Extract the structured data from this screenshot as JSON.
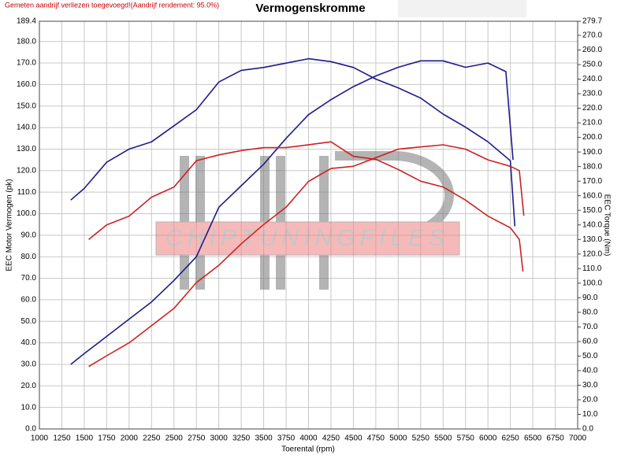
{
  "chart_data": {
    "type": "line",
    "title": "Vermogenskromme",
    "subtitle": "Gemeten aandrijf verliezen toegevoegd!(Aandrijf rendement: 95.0%)",
    "xlabel": "Toerental (rpm)",
    "ylabel": "EEC Motor Vermogen (pk)",
    "y2label": "EEC Torque (Nm)",
    "watermark": "CHIPTUNINGFILES",
    "grid": true,
    "xlim": [
      1000,
      7000
    ],
    "xticks": [
      1000,
      1250,
      1500,
      1750,
      2000,
      2250,
      2500,
      2750,
      3000,
      3250,
      3500,
      3750,
      4000,
      4250,
      4500,
      4750,
      5000,
      5250,
      5500,
      5750,
      6000,
      6250,
      6500,
      6750,
      7000
    ],
    "ylim": [
      0,
      189.4
    ],
    "yticks": [
      {
        "value": 0,
        "label": "0.0"
      },
      {
        "value": 10,
        "label": "10.0"
      },
      {
        "value": 20,
        "label": "20.0"
      },
      {
        "value": 30,
        "label": "30.0"
      },
      {
        "value": 40,
        "label": "40.0"
      },
      {
        "value": 50,
        "label": "50.0"
      },
      {
        "value": 60,
        "label": "60.0"
      },
      {
        "value": 70,
        "label": "70.0"
      },
      {
        "value": 80,
        "label": "80.0"
      },
      {
        "value": 90,
        "label": "90.0"
      },
      {
        "value": 100,
        "label": "100.0"
      },
      {
        "value": 110,
        "label": "110.0"
      },
      {
        "value": 120,
        "label": "120.0"
      },
      {
        "value": 130,
        "label": "130.0"
      },
      {
        "value": 140,
        "label": "140.0"
      },
      {
        "value": 150,
        "label": "150.0"
      },
      {
        "value": 160,
        "label": "160.0"
      },
      {
        "value": 170,
        "label": "170.0"
      },
      {
        "value": 180,
        "label": "180.0"
      },
      189.4
    ],
    "y2lim": [
      0,
      279.7
    ],
    "y2ticks": [
      {
        "value": 0,
        "label": "0.0"
      },
      {
        "value": 10,
        "label": "10.0"
      },
      {
        "value": 20,
        "label": "20.0"
      },
      {
        "value": 30,
        "label": "30.0"
      },
      {
        "value": 40,
        "label": "40.0"
      },
      {
        "value": 50,
        "label": "50.0"
      },
      {
        "value": 60,
        "label": "60.0"
      },
      {
        "value": 70,
        "label": "70.0"
      },
      {
        "value": 80,
        "label": "80.0"
      },
      {
        "value": 90,
        "label": "90.0"
      },
      {
        "value": 100,
        "label": "100.0"
      },
      {
        "value": 110,
        "label": "110.0"
      },
      {
        "value": 120,
        "label": "120.0"
      },
      {
        "value": 130,
        "label": "130.0"
      },
      {
        "value": 140,
        "label": "140.0"
      },
      {
        "value": 150,
        "label": "150.0"
      },
      {
        "value": 160,
        "label": "160.0"
      },
      {
        "value": 170,
        "label": "170.0"
      },
      {
        "value": 180,
        "label": "180.0"
      },
      {
        "value": 190,
        "label": "190.0"
      },
      {
        "value": 200,
        "label": "200.0"
      },
      {
        "value": 210,
        "label": "210.0"
      },
      {
        "value": 220,
        "label": "220.0"
      },
      {
        "value": 230,
        "label": "230.0"
      },
      {
        "value": 240,
        "label": "240.0"
      },
      {
        "value": 250,
        "label": "250.0"
      },
      {
        "value": 260,
        "label": "260.0"
      },
      {
        "value": 270,
        "label": "270.0"
      },
      279.7
    ],
    "series": [
      {
        "color": "#1c1c8a",
        "axis": "y",
        "x": [
          1350,
          1500,
          1750,
          2000,
          2250,
          2500,
          2750,
          3000,
          3250,
          3500,
          3750,
          4000,
          4250,
          4500,
          4750,
          5000,
          5250,
          5500,
          5750,
          6000,
          6200,
          6280
        ],
        "values": [
          30,
          35,
          43,
          51,
          59,
          69,
          80,
          103,
          113,
          123,
          135,
          146,
          153,
          159,
          164,
          168,
          171,
          171,
          168,
          170,
          166,
          125
        ]
      },
      {
        "color": "#1c1c8a",
        "axis": "y2",
        "x": [
          1350,
          1500,
          1750,
          2000,
          2250,
          2500,
          2750,
          3000,
          3250,
          3500,
          3750,
          4000,
          4250,
          4500,
          4750,
          5000,
          5250,
          5500,
          5750,
          6000,
          6250,
          6300
        ],
        "values": [
          157,
          165,
          183,
          192,
          197,
          208,
          219,
          238,
          246,
          248,
          251,
          254,
          252,
          248,
          240,
          234,
          227,
          216,
          207,
          197,
          184,
          139
        ]
      },
      {
        "color": "#cc2222",
        "axis": "y",
        "x": [
          1550,
          1750,
          2000,
          2250,
          2500,
          2750,
          3000,
          3250,
          3500,
          3750,
          4000,
          4250,
          4500,
          4750,
          5000,
          5250,
          5500,
          5750,
          6000,
          6250,
          6350,
          6400
        ],
        "values": [
          29,
          34,
          40,
          48,
          56,
          68,
          76,
          86,
          95,
          103,
          115,
          121,
          122,
          126,
          130,
          131,
          132,
          130,
          125,
          122,
          120,
          99
        ]
      },
      {
        "color": "#cc2222",
        "axis": "y2",
        "x": [
          1550,
          1750,
          2000,
          2250,
          2500,
          2750,
          3000,
          3250,
          3500,
          3750,
          4000,
          4250,
          4500,
          4750,
          5000,
          5250,
          5500,
          5750,
          6000,
          6250,
          6350,
          6390
        ],
        "values": [
          130,
          140,
          146,
          159,
          166,
          184,
          188,
          191,
          193,
          193,
          195,
          197,
          187,
          185,
          178,
          170,
          166,
          157,
          146,
          138,
          130,
          108
        ]
      }
    ]
  }
}
